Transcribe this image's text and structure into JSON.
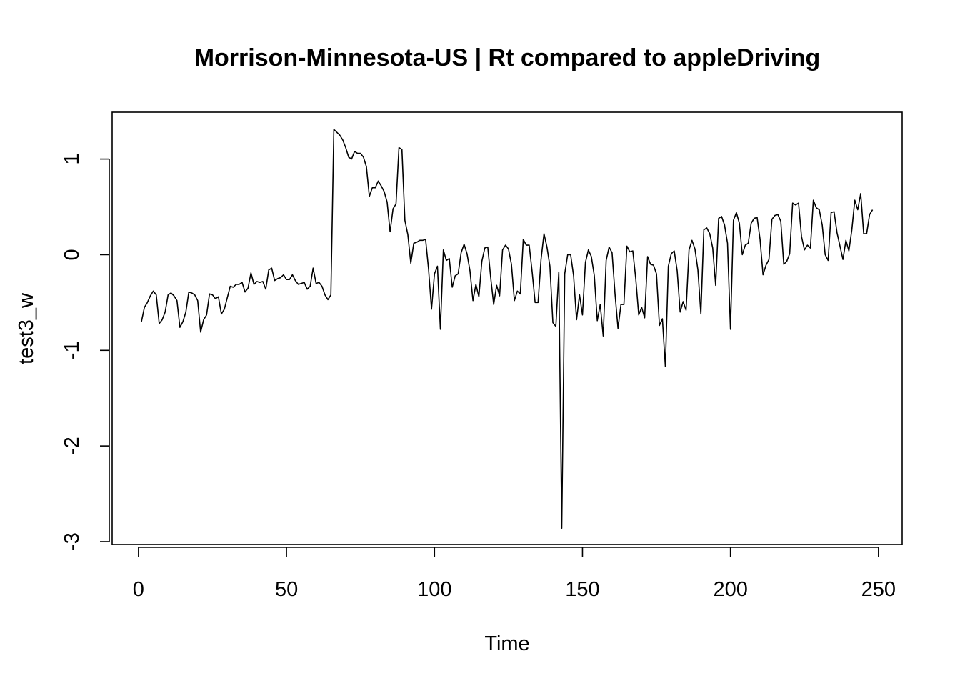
{
  "chart_data": {
    "type": "line",
    "title": "Morrison-Minnesota-US | Rt compared to appleDriving",
    "xlabel": "Time",
    "ylabel": "test3_w",
    "xlim": [
      -8.9,
      258
    ],
    "ylim": [
      -3.03,
      1.49
    ],
    "x_ticks": [
      0,
      50,
      100,
      150,
      200,
      250
    ],
    "x_tick_labels": [
      "0",
      "50",
      "100",
      "150",
      "200",
      "250"
    ],
    "y_ticks": [
      -3,
      -2,
      -1,
      0,
      1
    ],
    "y_tick_labels": [
      "-3",
      "-2",
      "-1",
      "0",
      "1"
    ],
    "grid": false,
    "line_color": "#000000",
    "x_start": 1,
    "series": [
      {
        "values": [
          -0.7,
          -0.55,
          -0.5,
          -0.43,
          -0.38,
          -0.42,
          -0.72,
          -0.68,
          -0.6,
          -0.42,
          -0.4,
          -0.43,
          -0.48,
          -0.76,
          -0.7,
          -0.6,
          -0.39,
          -0.4,
          -0.42,
          -0.48,
          -0.81,
          -0.68,
          -0.63,
          -0.41,
          -0.42,
          -0.46,
          -0.44,
          -0.62,
          -0.57,
          -0.45,
          -0.33,
          -0.34,
          -0.31,
          -0.31,
          -0.29,
          -0.39,
          -0.35,
          -0.19,
          -0.31,
          -0.28,
          -0.29,
          -0.28,
          -0.36,
          -0.16,
          -0.14,
          -0.27,
          -0.25,
          -0.24,
          -0.21,
          -0.26,
          -0.26,
          -0.21,
          -0.27,
          -0.31,
          -0.3,
          -0.29,
          -0.36,
          -0.33,
          -0.14,
          -0.3,
          -0.29,
          -0.33,
          -0.42,
          -0.47,
          -0.42,
          1.31,
          1.28,
          1.25,
          1.2,
          1.12,
          1.02,
          1.0,
          1.08,
          1.06,
          1.06,
          1.02,
          0.92,
          0.61,
          0.7,
          0.7,
          0.77,
          0.72,
          0.66,
          0.55,
          0.24,
          0.48,
          0.53,
          1.12,
          1.1,
          0.36,
          0.21,
          -0.09,
          0.12,
          0.13,
          0.15,
          0.15,
          0.16,
          -0.15,
          -0.57,
          -0.2,
          -0.12,
          -0.78,
          0.05,
          -0.06,
          -0.04,
          -0.34,
          -0.22,
          -0.2,
          0.02,
          0.11,
          0.01,
          -0.17,
          -0.48,
          -0.31,
          -0.44,
          -0.07,
          0.07,
          0.08,
          -0.24,
          -0.52,
          -0.32,
          -0.43,
          0.05,
          0.1,
          0.06,
          -0.1,
          -0.48,
          -0.38,
          -0.41,
          0.16,
          0.1,
          0.1,
          -0.18,
          -0.5,
          -0.5,
          -0.05,
          0.22,
          0.08,
          -0.12,
          -0.71,
          -0.75,
          -0.18,
          -2.86,
          -0.2,
          0.0,
          0.0,
          -0.22,
          -0.68,
          -0.42,
          -0.63,
          -0.08,
          0.05,
          -0.02,
          -0.22,
          -0.69,
          -0.52,
          -0.85,
          -0.06,
          0.08,
          0.02,
          -0.41,
          -0.77,
          -0.52,
          -0.52,
          0.09,
          0.03,
          0.04,
          -0.25,
          -0.63,
          -0.55,
          -0.66,
          -0.02,
          -0.1,
          -0.11,
          -0.2,
          -0.74,
          -0.67,
          -1.17,
          -0.12,
          0.01,
          0.04,
          -0.17,
          -0.6,
          -0.49,
          -0.58,
          0.05,
          0.15,
          0.06,
          -0.16,
          -0.62,
          0.26,
          0.28,
          0.22,
          0.07,
          -0.32,
          0.38,
          0.4,
          0.31,
          0.12,
          -0.78,
          0.36,
          0.44,
          0.33,
          0.0,
          0.1,
          0.12,
          0.33,
          0.38,
          0.39,
          0.16,
          -0.21,
          -0.11,
          -0.05,
          0.37,
          0.41,
          0.42,
          0.35,
          -0.1,
          -0.07,
          0.01,
          0.54,
          0.52,
          0.54,
          0.19,
          0.05,
          0.1,
          0.07,
          0.57,
          0.49,
          0.47,
          0.31,
          0.0,
          -0.06,
          0.44,
          0.45,
          0.23,
          0.09,
          -0.05,
          0.15,
          0.04,
          0.26,
          0.57,
          0.47,
          0.64,
          0.22,
          0.22,
          0.42,
          0.47
        ]
      }
    ]
  }
}
